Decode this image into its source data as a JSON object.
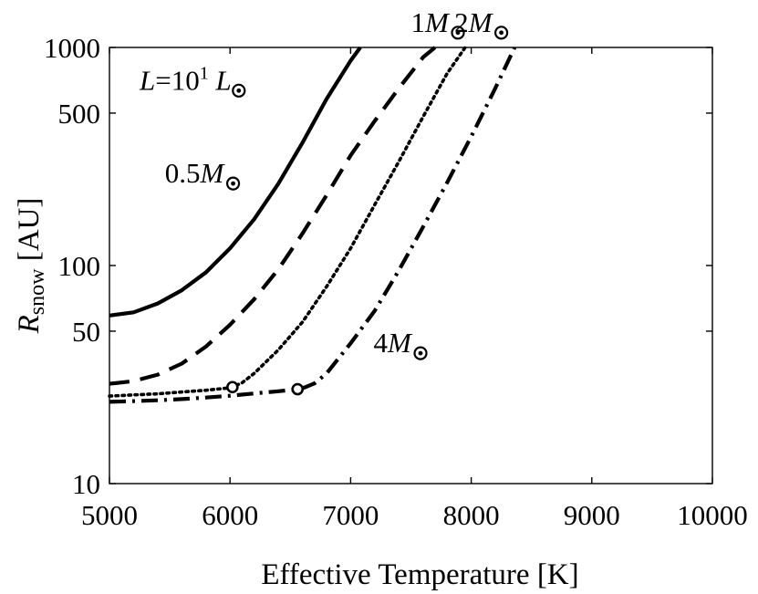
{
  "chart_data": {
    "type": "line",
    "title": "",
    "xlabel": "Effective Temperature [K]",
    "ylabel": "R",
    "ylabel_subscript": "snow",
    "ylabel_unit": "[AU]",
    "x_scale": "linear",
    "y_scale": "log",
    "xlim": [
      5000,
      10000
    ],
    "ylim": [
      10,
      1000
    ],
    "xticks": [
      5000,
      6000,
      7000,
      8000,
      9000,
      10000
    ],
    "xtick_labels": [
      "5000",
      "6000",
      "7000",
      "8000",
      "9000",
      "10000"
    ],
    "yticks": [
      10,
      50,
      100,
      500,
      1000
    ],
    "ytick_labels": [
      "10",
      "50",
      "100",
      "500",
      "1000"
    ],
    "grid": false,
    "series": [
      {
        "name": "0.5M",
        "line_style": "solid",
        "x": [
          5000,
          5200,
          5400,
          5600,
          5800,
          6000,
          6200,
          6400,
          6600,
          6800,
          7000,
          7080
        ],
        "values": [
          59,
          61,
          67,
          77,
          93,
          120,
          163,
          237,
          365,
          580,
          870,
          1000
        ],
        "markers": []
      },
      {
        "name": "1M",
        "line_style": "dashed",
        "x": [
          5000,
          5200,
          5400,
          5600,
          5800,
          6000,
          6200,
          6400,
          6600,
          6800,
          7000,
          7200,
          7400,
          7600,
          7700
        ],
        "values": [
          28.7,
          29.5,
          31.6,
          35.5,
          42.5,
          53.5,
          70,
          96,
          140,
          210,
          320,
          460,
          650,
          900,
          1000
        ],
        "markers": []
      },
      {
        "name": "2M",
        "line_style": "dotted",
        "x": [
          5000,
          5200,
          5400,
          5600,
          5800,
          6000,
          6020,
          6100,
          6200,
          6400,
          6600,
          6800,
          7000,
          7200,
          7400,
          7600,
          7800,
          7950
        ],
        "values": [
          25.2,
          25.5,
          25.8,
          26.3,
          26.8,
          27.5,
          27.7,
          29,
          32,
          41,
          55,
          80,
          120,
          190,
          300,
          480,
          760,
          1000
        ],
        "markers": [
          {
            "x": 6020,
            "y": 27.7
          }
        ]
      },
      {
        "name": "4M",
        "line_style": "dashdot",
        "x": [
          5000,
          5200,
          5400,
          5600,
          5800,
          6000,
          6200,
          6400,
          6560,
          6620,
          6700,
          6800,
          7000,
          7200,
          7400,
          7600,
          7800,
          8000,
          8200,
          8360
        ],
        "values": [
          23.7,
          23.9,
          24.1,
          24.4,
          24.8,
          25.3,
          25.9,
          26.5,
          27.1,
          27.6,
          28.8,
          32,
          44,
          62,
          95,
          150,
          240,
          390,
          650,
          1000
        ],
        "markers": [
          {
            "x": 6560,
            "y": 27.1
          }
        ]
      }
    ],
    "annotations": [
      {
        "id": "luminosity",
        "text": "L",
        "middle": "=10",
        "sup": "1",
        "suffix": "L",
        "sun_symbol": true,
        "x": 5250,
        "y": 640
      },
      {
        "id": "m05",
        "text": "0.5",
        "italic": "M",
        "sun_symbol": true,
        "x": 5460,
        "y": 240
      },
      {
        "id": "m1",
        "text": "1",
        "italic": "M",
        "sun_symbol": true,
        "x": 7500,
        "y": 1180
      },
      {
        "id": "m2",
        "text": "2",
        "italic": "M",
        "sun_symbol": true,
        "x": 7860,
        "y": 1180
      },
      {
        "id": "m4",
        "text": "4",
        "italic": "M",
        "sun_symbol": true,
        "x": 7190,
        "y": 40
      }
    ]
  }
}
